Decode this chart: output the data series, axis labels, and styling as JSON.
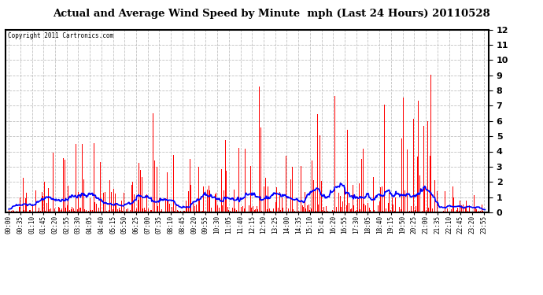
{
  "title": "Actual and Average Wind Speed by Minute  mph (Last 24 Hours) 20110528",
  "copyright": "Copyright 2011 Cartronics.com",
  "ylim": [
    0.0,
    12.0
  ],
  "yticks": [
    0.0,
    1.0,
    2.0,
    3.0,
    4.0,
    5.0,
    6.0,
    7.0,
    8.0,
    9.0,
    10.0,
    11.0,
    12.0
  ],
  "background_color": "#ffffff",
  "bar_color": "#ff0000",
  "line_color": "#0000ff",
  "grid_color": "#bbbbbb",
  "num_minutes": 1440,
  "seed": 7
}
